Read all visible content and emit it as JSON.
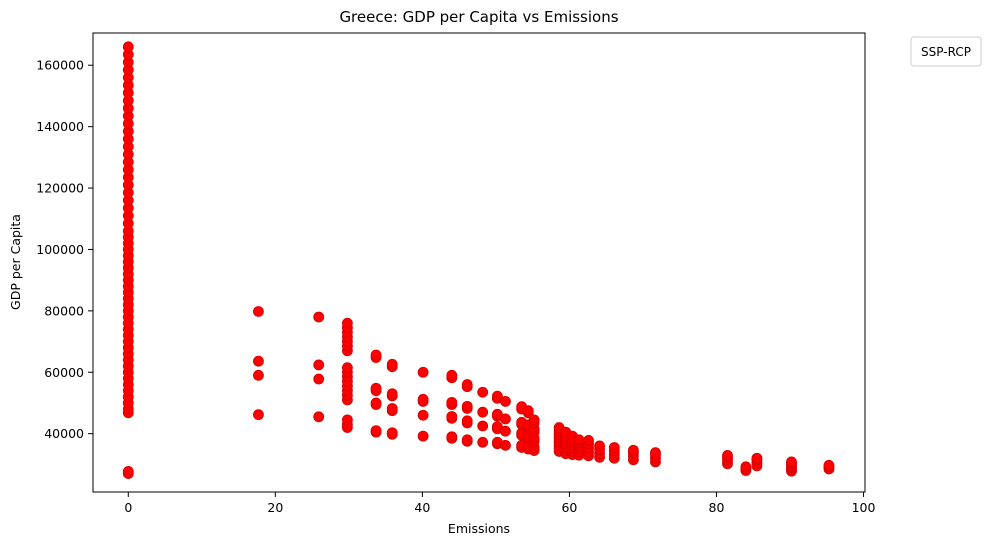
{
  "chart_data": {
    "type": "scatter",
    "title": "Greece: GDP per Capita vs Emissions",
    "xlabel": "Emissions",
    "ylabel": "GDP per Capita",
    "xlim": [
      -4.8,
      100.2
    ],
    "ylim": [
      21000,
      170500
    ],
    "x_ticks": [
      0,
      20,
      40,
      60,
      80,
      100
    ],
    "y_ticks": [
      40000,
      60000,
      80000,
      100000,
      120000,
      140000,
      160000
    ],
    "grid": false,
    "legend": {
      "title": "SSP-RCP",
      "placement": "outside-top-right"
    },
    "marker_color": "#ff0000",
    "marker_edge_color": "#d40000",
    "series": [
      {
        "points": [
          [
            0,
            27000
          ],
          [
            0,
            27700
          ],
          [
            0,
            46800
          ],
          [
            0,
            48000
          ],
          [
            0,
            50000
          ],
          [
            0,
            52000
          ],
          [
            0,
            54000
          ],
          [
            0,
            56000
          ],
          [
            0,
            58000
          ],
          [
            0,
            60000
          ],
          [
            0,
            62000
          ],
          [
            0,
            64000
          ],
          [
            0,
            66000
          ],
          [
            0,
            68000
          ],
          [
            0,
            70000
          ],
          [
            0,
            72000
          ],
          [
            0,
            74000
          ],
          [
            0,
            76000
          ],
          [
            0,
            78000
          ],
          [
            0,
            80000
          ],
          [
            0,
            82000
          ],
          [
            0,
            84000
          ],
          [
            0,
            86000
          ],
          [
            0,
            88000
          ],
          [
            0,
            90000
          ],
          [
            0,
            92000
          ],
          [
            0,
            94000
          ],
          [
            0,
            96000
          ],
          [
            0,
            98000
          ],
          [
            0,
            100000
          ],
          [
            0,
            102000
          ],
          [
            0,
            104000
          ],
          [
            0,
            106000
          ],
          [
            0,
            108500
          ],
          [
            0,
            111000
          ],
          [
            0,
            113500
          ],
          [
            0,
            116000
          ],
          [
            0,
            118500
          ],
          [
            0,
            121000
          ],
          [
            0,
            123500
          ],
          [
            0,
            126000
          ],
          [
            0,
            128500
          ],
          [
            0,
            131000
          ],
          [
            0,
            133500
          ],
          [
            0,
            136000
          ],
          [
            0,
            138500
          ],
          [
            0,
            141000
          ],
          [
            0,
            143500
          ],
          [
            0,
            146000
          ],
          [
            0,
            148500
          ],
          [
            0,
            151000
          ],
          [
            0,
            153500
          ],
          [
            0,
            156000
          ],
          [
            0,
            158500
          ],
          [
            0,
            161000
          ],
          [
            0,
            163500
          ],
          [
            0,
            166000
          ],
          [
            17.7,
            46200
          ],
          [
            17.7,
            59000
          ],
          [
            17.7,
            63600
          ],
          [
            17.7,
            79800
          ],
          [
            25.9,
            45500
          ],
          [
            25.9,
            57800
          ],
          [
            25.9,
            62400
          ],
          [
            25.9,
            78000
          ],
          [
            29.8,
            42000
          ],
          [
            29.8,
            43000
          ],
          [
            29.8,
            44500
          ],
          [
            29.8,
            51000
          ],
          [
            29.8,
            52500
          ],
          [
            29.8,
            54000
          ],
          [
            29.8,
            55500
          ],
          [
            29.8,
            57000
          ],
          [
            29.8,
            58500
          ],
          [
            29.8,
            60000
          ],
          [
            29.8,
            61500
          ],
          [
            29.8,
            67000
          ],
          [
            29.8,
            68500
          ],
          [
            29.8,
            70000
          ],
          [
            29.8,
            71500
          ],
          [
            29.8,
            73000
          ],
          [
            29.8,
            74500
          ],
          [
            29.8,
            76000
          ],
          [
            33.7,
            40500
          ],
          [
            33.7,
            41000
          ],
          [
            33.7,
            49500
          ],
          [
            33.7,
            50000
          ],
          [
            33.7,
            54000
          ],
          [
            33.7,
            54800
          ],
          [
            33.7,
            64800
          ],
          [
            33.7,
            65600
          ],
          [
            35.9,
            39800
          ],
          [
            35.9,
            40300
          ],
          [
            35.9,
            47500
          ],
          [
            35.9,
            48200
          ],
          [
            35.9,
            52300
          ],
          [
            35.9,
            53000
          ],
          [
            35.9,
            61800
          ],
          [
            35.9,
            62600
          ],
          [
            40.1,
            39200
          ],
          [
            40.1,
            46000
          ],
          [
            40.1,
            50500
          ],
          [
            40.1,
            51200
          ],
          [
            40.1,
            60000
          ],
          [
            44.0,
            38500
          ],
          [
            44.0,
            39000
          ],
          [
            44.0,
            45000
          ],
          [
            44.0,
            45600
          ],
          [
            44.0,
            49500
          ],
          [
            44.0,
            50200
          ],
          [
            44.0,
            58200
          ],
          [
            44.0,
            59000
          ],
          [
            46.1,
            37500
          ],
          [
            46.1,
            38000
          ],
          [
            46.1,
            43500
          ],
          [
            46.1,
            44200
          ],
          [
            46.1,
            48200
          ],
          [
            46.1,
            48900
          ],
          [
            46.1,
            55300
          ],
          [
            46.1,
            56000
          ],
          [
            48.2,
            37200
          ],
          [
            48.2,
            42500
          ],
          [
            48.2,
            47000
          ],
          [
            48.2,
            53500
          ],
          [
            50.2,
            36700
          ],
          [
            50.2,
            37200
          ],
          [
            50.2,
            41600
          ],
          [
            50.2,
            42300
          ],
          [
            50.2,
            45700
          ],
          [
            50.2,
            46300
          ],
          [
            50.2,
            51500
          ],
          [
            50.2,
            52200
          ],
          [
            51.3,
            36200
          ],
          [
            51.3,
            40800
          ],
          [
            51.3,
            44800
          ],
          [
            51.3,
            50500
          ],
          [
            53.5,
            35500
          ],
          [
            53.5,
            36200
          ],
          [
            53.5,
            39500
          ],
          [
            53.5,
            40200
          ],
          [
            53.5,
            43000
          ],
          [
            53.5,
            43700
          ],
          [
            53.5,
            48000
          ],
          [
            53.5,
            48800
          ],
          [
            54.4,
            35000
          ],
          [
            54.4,
            35700
          ],
          [
            54.4,
            38800
          ],
          [
            54.4,
            39500
          ],
          [
            54.4,
            42200
          ],
          [
            54.4,
            42900
          ],
          [
            54.4,
            46800
          ],
          [
            54.4,
            47500
          ],
          [
            55.2,
            34500
          ],
          [
            55.2,
            35500
          ],
          [
            55.2,
            37500
          ],
          [
            55.2,
            38500
          ],
          [
            55.2,
            40500
          ],
          [
            55.2,
            41500
          ],
          [
            55.2,
            43500
          ],
          [
            55.2,
            44500
          ],
          [
            58.6,
            34200
          ],
          [
            58.6,
            35300
          ],
          [
            58.6,
            36400
          ],
          [
            58.6,
            37500
          ],
          [
            58.6,
            38600
          ],
          [
            58.6,
            39700
          ],
          [
            58.6,
            40800
          ],
          [
            58.6,
            42000
          ],
          [
            59.5,
            33500
          ],
          [
            59.5,
            34500
          ],
          [
            59.5,
            35500
          ],
          [
            59.5,
            36500
          ],
          [
            59.5,
            37500
          ],
          [
            59.5,
            38500
          ],
          [
            59.5,
            39500
          ],
          [
            59.5,
            40500
          ],
          [
            60.4,
            33200
          ],
          [
            60.4,
            34200
          ],
          [
            60.4,
            35200
          ],
          [
            60.4,
            36200
          ],
          [
            60.4,
            37200
          ],
          [
            60.4,
            38200
          ],
          [
            60.4,
            39200
          ],
          [
            61.3,
            33000
          ],
          [
            61.3,
            34000
          ],
          [
            61.3,
            35000
          ],
          [
            61.3,
            36000
          ],
          [
            61.3,
            37000
          ],
          [
            61.3,
            38000
          ],
          [
            62.6,
            32800
          ],
          [
            62.6,
            34000
          ],
          [
            62.6,
            35300
          ],
          [
            62.6,
            36600
          ],
          [
            62.6,
            37800
          ],
          [
            64.1,
            32300
          ],
          [
            64.1,
            33500
          ],
          [
            64.1,
            34800
          ],
          [
            64.1,
            36000
          ],
          [
            66.1,
            32000
          ],
          [
            66.1,
            33200
          ],
          [
            66.1,
            34400
          ],
          [
            66.1,
            35500
          ],
          [
            68.7,
            31500
          ],
          [
            68.7,
            32700
          ],
          [
            68.7,
            33800
          ],
          [
            68.7,
            34600
          ],
          [
            71.7,
            30800
          ],
          [
            71.7,
            32000
          ],
          [
            71.7,
            33100
          ],
          [
            71.7,
            33800
          ],
          [
            81.5,
            30200
          ],
          [
            81.5,
            31300
          ],
          [
            81.5,
            32300
          ],
          [
            81.5,
            32900
          ],
          [
            84.0,
            28000
          ],
          [
            84.0,
            28600
          ],
          [
            84.0,
            29200
          ],
          [
            85.5,
            29500
          ],
          [
            85.5,
            30500
          ],
          [
            85.5,
            31400
          ],
          [
            85.5,
            32000
          ],
          [
            90.2,
            27800
          ],
          [
            90.2,
            28400
          ],
          [
            90.2,
            29000
          ],
          [
            90.2,
            29600
          ],
          [
            90.2,
            30200
          ],
          [
            90.2,
            30800
          ],
          [
            95.3,
            28500
          ],
          [
            95.3,
            29100
          ],
          [
            95.3,
            29700
          ]
        ]
      }
    ]
  }
}
